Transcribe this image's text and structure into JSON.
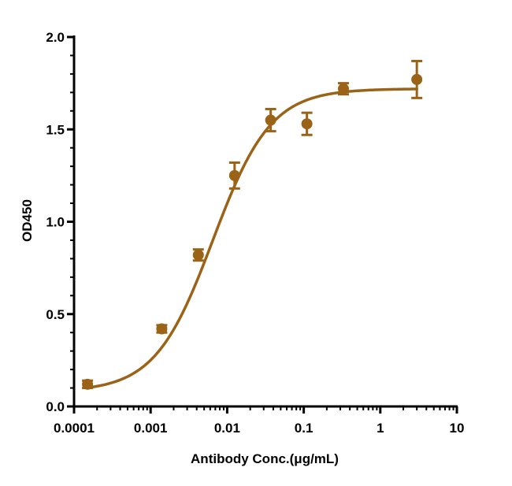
{
  "chart_data": {
    "type": "scatter",
    "xlabel": "Antibody Conc.(μg/mL)",
    "ylabel": "OD450",
    "xscale": "log",
    "xlim": [
      0.0001,
      10
    ],
    "ylim": [
      0,
      2
    ],
    "x_ticks": [
      0.0001,
      0.001,
      0.01,
      0.1,
      1,
      10
    ],
    "x_tick_labels": [
      "0.0001",
      "0.001",
      "0.01",
      "0.1",
      "1",
      "10"
    ],
    "y_ticks": [
      0,
      0.5,
      1,
      1.5,
      2
    ],
    "y_tick_labels": [
      "0.0",
      "0.5",
      "1.0",
      "1.5",
      "2.0"
    ],
    "grid": false,
    "series": [
      {
        "color": "#9B6318",
        "x": [
          0.00015,
          0.0014,
          0.0042,
          0.0125,
          0.037,
          0.11,
          0.33,
          3.0
        ],
        "y": [
          0.12,
          0.42,
          0.82,
          1.25,
          1.55,
          1.53,
          1.72,
          1.77
        ],
        "error": [
          0.02,
          0.02,
          0.03,
          0.07,
          0.06,
          0.06,
          0.03,
          0.1
        ]
      }
    ],
    "fit": {
      "type": "4PL",
      "bottom": 0.08,
      "top": 1.72,
      "ec50": 0.0065,
      "hill": 1.15
    }
  }
}
